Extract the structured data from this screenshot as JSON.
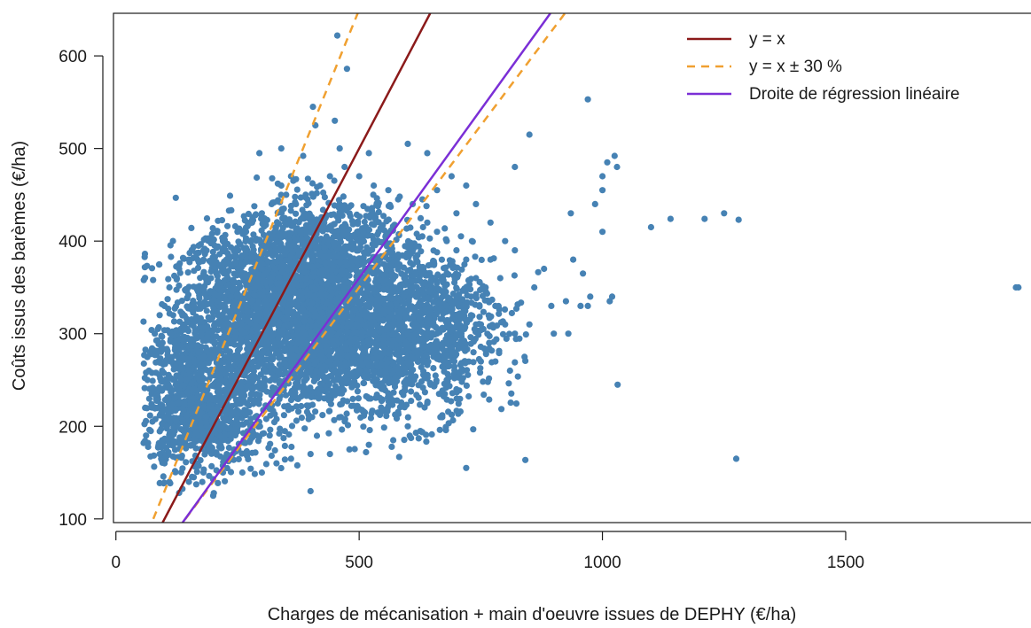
{
  "chart_data": {
    "type": "scatter",
    "title": "",
    "xlabel": "Charges de mécanisation + main d'oeuvre issues de DEPHY (€/ha)",
    "ylabel": "Coûts issus des barèmes (€/ha)",
    "xlim": [
      -5,
      1890
    ],
    "ylim": [
      96,
      646
    ],
    "x_ticks": [
      0,
      500,
      1000,
      1500
    ],
    "y_ticks": [
      100,
      200,
      300,
      400,
      500,
      600
    ],
    "grid": false,
    "legend_position": "top-right",
    "point_color": "#4682B4",
    "point_cloud_note": "",
    "series": [
      {
        "name": "",
        "kind": "points",
        "color": "#4682B4",
        "points": [
          [
            455,
            622
          ],
          [
            475,
            586
          ],
          [
            405,
            545
          ],
          [
            410,
            525
          ],
          [
            385,
            492
          ],
          [
            450,
            530
          ],
          [
            295,
            495
          ],
          [
            340,
            500
          ],
          [
            360,
            470
          ],
          [
            460,
            500
          ],
          [
            520,
            495
          ],
          [
            600,
            505
          ],
          [
            640,
            495
          ],
          [
            820,
            480
          ],
          [
            850,
            515
          ],
          [
            970,
            553
          ],
          [
            1025,
            492
          ],
          [
            1010,
            485
          ],
          [
            1000,
            455
          ],
          [
            985,
            440
          ],
          [
            935,
            430
          ],
          [
            1000,
            410
          ],
          [
            1100,
            415
          ],
          [
            1140,
            424
          ],
          [
            1210,
            424
          ],
          [
            1250,
            430
          ],
          [
            1280,
            423
          ],
          [
            1020,
            340
          ],
          [
            1015,
            335
          ],
          [
            975,
            340
          ],
          [
            970,
            330
          ],
          [
            955,
            330
          ],
          [
            925,
            335
          ],
          [
            895,
            330
          ],
          [
            880,
            370
          ],
          [
            860,
            350
          ],
          [
            850,
            310
          ],
          [
            900,
            300
          ],
          [
            840,
            275
          ],
          [
            810,
            260
          ],
          [
            780,
            270
          ],
          [
            750,
            270
          ],
          [
            740,
            310
          ],
          [
            730,
            320
          ],
          [
            700,
            240
          ],
          [
            680,
            250
          ],
          [
            640,
            225
          ],
          [
            600,
            200
          ],
          [
            570,
            185
          ],
          [
            520,
            180
          ],
          [
            480,
            175
          ],
          [
            440,
            170
          ],
          [
            400,
            170
          ],
          [
            360,
            165
          ],
          [
            330,
            160
          ],
          [
            300,
            150
          ],
          [
            260,
            150
          ],
          [
            220,
            150
          ],
          [
            180,
            150
          ],
          [
            160,
            145
          ],
          [
            150,
            140
          ],
          [
            130,
            128
          ],
          [
            110,
            140
          ],
          [
            100,
            160
          ],
          [
            200,
            125
          ],
          [
            400,
            130
          ],
          [
            720,
            155
          ],
          [
            1275,
            165
          ],
          [
            1850,
            350
          ],
          [
            1855,
            350
          ],
          [
            820,
            390
          ],
          [
            800,
            400
          ],
          [
            770,
            420
          ],
          [
            740,
            440
          ],
          [
            720,
            460
          ],
          [
            700,
            430
          ],
          [
            690,
            470
          ],
          [
            660,
            455
          ],
          [
            630,
            445
          ],
          [
            940,
            380
          ],
          [
            930,
            300
          ],
          [
            960,
            365
          ],
          [
            1030,
            480
          ],
          [
            1000,
            470
          ],
          [
            60,
            220
          ],
          [
            62,
            190
          ],
          [
            65,
            250
          ],
          [
            70,
            280
          ],
          [
            80,
            300
          ],
          [
            90,
            320
          ],
          [
            100,
            330
          ],
          [
            110,
            350
          ],
          [
            130,
            370
          ],
          [
            150,
            380
          ],
          [
            170,
            395
          ],
          [
            180,
            390
          ],
          [
            200,
            380
          ],
          [
            220,
            400
          ],
          [
            250,
            410
          ],
          [
            280,
            420
          ],
          [
            300,
            430
          ],
          [
            320,
            440
          ],
          [
            340,
            460
          ],
          [
            350,
            450
          ],
          [
            370,
            440
          ],
          [
            390,
            450
          ],
          [
            420,
            460
          ],
          [
            440,
            470
          ],
          [
            470,
            480
          ],
          [
            500,
            470
          ],
          [
            530,
            460
          ],
          [
            560,
            455
          ],
          [
            580,
            445
          ],
          [
            610,
            440
          ],
          [
            640,
            420
          ],
          [
            660,
            410
          ],
          [
            680,
            400
          ],
          [
            700,
            390
          ],
          [
            720,
            380
          ],
          [
            740,
            360
          ],
          [
            760,
            350
          ],
          [
            780,
            330
          ],
          [
            800,
            310
          ],
          [
            820,
            300
          ],
          [
            790,
            360
          ],
          [
            770,
            380
          ],
          [
            75,
            205
          ],
          [
            85,
            235
          ],
          [
            95,
            260
          ],
          [
            120,
            290
          ],
          [
            140,
            310
          ],
          [
            160,
            330
          ],
          [
            600,
            300
          ],
          [
            620,
            280
          ],
          [
            580,
            260
          ],
          [
            550,
            240
          ],
          [
            520,
            230
          ],
          [
            650,
            350
          ],
          [
            660,
            300
          ],
          [
            680,
            330
          ],
          [
            700,
            340
          ],
          [
            710,
            300
          ],
          [
            690,
            280
          ],
          [
            560,
            380
          ],
          [
            540,
            410
          ],
          [
            480,
            430
          ],
          [
            460,
            440
          ],
          [
            380,
            410
          ],
          [
            360,
            420
          ],
          [
            330,
            400
          ],
          [
            300,
            370
          ],
          [
            270,
            350
          ],
          [
            240,
            330
          ],
          [
            210,
            320
          ],
          [
            190,
            300
          ],
          [
            170,
            280
          ],
          [
            150,
            260
          ],
          [
            130,
            240
          ],
          [
            115,
            220
          ],
          [
            105,
            200
          ],
          [
            95,
            185
          ],
          [
            90,
            170
          ]
        ]
      },
      {
        "name": "y = x",
        "kind": "line",
        "color": "#8B1A1A",
        "style": "solid",
        "x": [
          96,
          646
        ],
        "y": [
          96,
          646
        ]
      },
      {
        "name": "y = x ± 30 %",
        "kind": "band-lines",
        "color": "#F0A030",
        "style": "dashed",
        "lines": [
          {
            "x": [
              76.9,
              497
            ],
            "y": [
              100,
              646
            ]
          },
          {
            "x": [
              142.9,
              923
            ],
            "y": [
              100,
              646
            ]
          }
        ]
      },
      {
        "name": "Droite de régression linéaire",
        "kind": "line",
        "color": "#7B2FD6",
        "style": "solid",
        "x": [
          137,
          893
        ],
        "y": [
          96,
          646
        ]
      }
    ],
    "dense_regions": [
      {
        "cx": 420,
        "cy": 330,
        "rx": 230,
        "ry": 75,
        "count": 1500
      },
      {
        "cx": 330,
        "cy": 290,
        "rx": 190,
        "ry": 80,
        "count": 1000
      },
      {
        "cx": 180,
        "cy": 210,
        "rx": 110,
        "ry": 55,
        "count": 700
      },
      {
        "cx": 560,
        "cy": 280,
        "rx": 200,
        "ry": 70,
        "count": 900
      },
      {
        "cx": 420,
        "cy": 390,
        "rx": 160,
        "ry": 50,
        "count": 700
      },
      {
        "cx": 260,
        "cy": 350,
        "rx": 120,
        "ry": 55,
        "count": 400
      },
      {
        "cx": 650,
        "cy": 330,
        "rx": 120,
        "ry": 55,
        "count": 300
      },
      {
        "cx": 150,
        "cy": 260,
        "rx": 70,
        "ry": 70,
        "count": 300
      }
    ]
  },
  "legend": {
    "items": [
      {
        "label": "y = x",
        "color": "#8B1A1A",
        "dashed": false
      },
      {
        "label": "y = x ± 30 %",
        "color": "#F0A030",
        "dashed": true
      },
      {
        "label": "Droite de régression linéaire",
        "color": "#7B2FD6",
        "dashed": false
      }
    ]
  }
}
